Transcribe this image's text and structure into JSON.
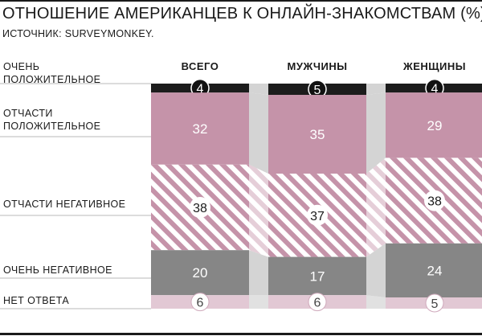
{
  "title": "ОТНОШЕНИЕ АМЕРИКАНЦЕВ К ОНЛАЙН-ЗНАКОМСТВАМ (%)",
  "source": "ИСТОЧНИК: SURVEYMONKEY.",
  "colors": {
    "very_positive": "#1c1c1c",
    "somewhat_positive": "#c593a9",
    "somewhat_negative_stripe": "#c593a9",
    "very_negative": "#868686",
    "no_answer": "#e2c8d4",
    "connector": "#d4d4d4"
  },
  "chart_data": {
    "type": "bar",
    "stacked": true,
    "normalized": true,
    "unit": "%",
    "categories": [
      "ВСЕГО",
      "МУЖЧИНЫ",
      "ЖЕНЩИНЫ"
    ],
    "series": [
      {
        "name": "ОЧЕНЬ ПОЛОЖИТЕЛЬНОЕ",
        "label_lines": [
          "ОЧЕНЬ",
          "ПОЛОЖИТЕЛЬНОЕ"
        ],
        "values": [
          4,
          5,
          4
        ],
        "fill": "solid",
        "color": "#1c1c1c",
        "value_style": "dark-badge"
      },
      {
        "name": "ОТЧАСТИ ПОЛОЖИТЕЛЬНОЕ",
        "label_lines": [
          "ОТЧАСТИ",
          "ПОЛОЖИТЕЛЬНОЕ"
        ],
        "values": [
          32,
          35,
          29
        ],
        "fill": "solid",
        "color": "#c593a9",
        "value_style": "white-text"
      },
      {
        "name": "ОТЧАСТИ НЕГАТИВНОЕ",
        "label_lines": [
          "ОТЧАСТИ НЕГАТИВНОЕ"
        ],
        "values": [
          38,
          37,
          38
        ],
        "fill": "stripes",
        "color": "#c593a9",
        "value_style": "white-badge"
      },
      {
        "name": "ОЧЕНЬ НЕГАТИВНОЕ",
        "label_lines": [
          "ОЧЕНЬ НЕГАТИВНОЕ"
        ],
        "values": [
          20,
          17,
          24
        ],
        "fill": "solid",
        "color": "#868686",
        "value_style": "white-text"
      },
      {
        "name": "НЕТ ОТВЕТА",
        "label_lines": [
          "НЕТ ОТВЕТА"
        ],
        "values": [
          6,
          6,
          5
        ],
        "fill": "solid",
        "color": "#e2c8d4",
        "value_style": "light-badge"
      }
    ]
  }
}
